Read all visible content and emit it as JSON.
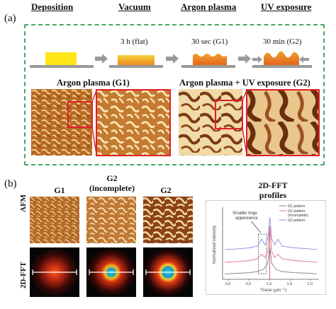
{
  "panel_a": {
    "label": "(a)",
    "steps": [
      {
        "title": "Deposition",
        "condition": ""
      },
      {
        "title": "Vacuum",
        "condition": "3 h (flat)"
      },
      {
        "title": "Argon plasma",
        "condition": "30 sec (G1)"
      },
      {
        "title": "UV exposure",
        "condition": "30 min (G2)"
      }
    ],
    "image_labels": {
      "left": "Argon plasma (G1)",
      "right": "Argon  plasma + UV exposure (G2)"
    },
    "colors": {
      "box_border": "#48a86a",
      "zoom_frame": "#e0202a",
      "arrow": "#9a9a9a"
    }
  },
  "panel_b": {
    "label": "(b)",
    "columns": [
      {
        "title": "G1"
      },
      {
        "title": "G2\n(incomplete)"
      },
      {
        "title": "G2"
      }
    ],
    "rows": [
      "AFM",
      "2D-FFT"
    ],
    "profiles": {
      "title": "2D-FFT\nprofiles",
      "ylabel": "Normalized intensity",
      "xlabel": "Trace (μm⁻¹)",
      "xticks": [
        "0,0",
        "0,5",
        "1,0",
        "1,5",
        "2,0"
      ],
      "annotation": "Smaller rings\nappereance",
      "legend": [
        "G1 pattern",
        "G2 pattern\n(incomplete)",
        "G2 pattern"
      ]
    }
  },
  "chart_data": {
    "type": "line",
    "title": "2D-FFT profiles",
    "xlabel": "Trace (μm⁻¹)",
    "ylabel": "Normalized intensity",
    "xlim": [
      -0.15,
      2.2
    ],
    "series": [
      {
        "name": "G1 pattern",
        "color": "#7f7f7f",
        "x": [
          -0.1,
          0.2,
          0.5,
          0.7,
          0.85,
          0.95,
          1.0,
          1.05,
          1.15,
          1.3,
          1.6,
          2.0,
          2.15
        ],
        "y": [
          0.02,
          0.03,
          0.04,
          0.06,
          0.1,
          0.2,
          0.5,
          0.2,
          0.1,
          0.06,
          0.04,
          0.03,
          0.02
        ]
      },
      {
        "name": "G2 pattern\n(incomplete)",
        "color": "#e0708a",
        "x": [
          -0.1,
          0.2,
          0.5,
          0.7,
          0.8,
          0.88,
          0.95,
          1.0,
          1.05,
          1.12,
          1.2,
          1.3,
          1.6,
          2.0,
          2.15
        ],
        "y": [
          0.22,
          0.23,
          0.25,
          0.28,
          0.36,
          0.3,
          0.4,
          0.85,
          0.4,
          0.3,
          0.36,
          0.28,
          0.25,
          0.23,
          0.22
        ]
      },
      {
        "name": "G2 pattern",
        "color": "#8c8ee0",
        "x": [
          -0.1,
          0.2,
          0.5,
          0.7,
          0.8,
          0.88,
          0.95,
          1.0,
          1.05,
          1.12,
          1.2,
          1.3,
          1.6,
          2.0,
          2.15
        ],
        "y": [
          0.44,
          0.45,
          0.47,
          0.5,
          0.62,
          0.52,
          0.62,
          1.0,
          0.62,
          0.52,
          0.62,
          0.5,
          0.47,
          0.45,
          0.44
        ]
      }
    ]
  }
}
